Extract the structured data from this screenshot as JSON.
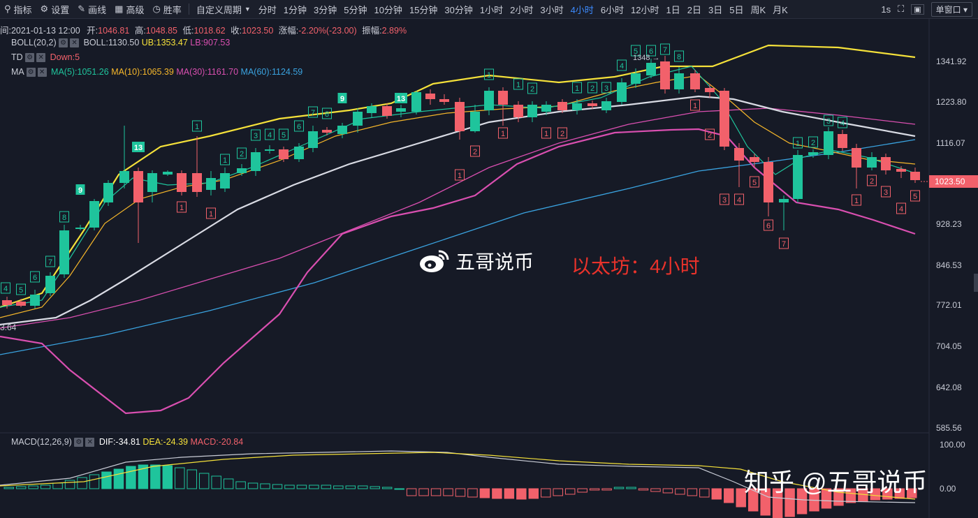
{
  "toolbar": {
    "indicators": "指标",
    "settings": "设置",
    "draw": "画线",
    "advanced": "高级",
    "winrate": "胜率",
    "custom_period": "自定义周期",
    "timeframes": [
      "分时",
      "1分钟",
      "3分钟",
      "5分钟",
      "10分钟",
      "15分钟",
      "30分钟",
      "1小时",
      "2小时",
      "3小时",
      "4小时",
      "6小时",
      "12小时",
      "1日",
      "2日",
      "3日",
      "5日",
      "周K",
      "月K"
    ],
    "active_timeframe": "4小时",
    "interval": "1s",
    "window_mode": "单窗口"
  },
  "ohlc": {
    "time": "间:2021-01-13 12:00",
    "open_label": "开:",
    "open": "1046.81",
    "high_label": "高:",
    "high": "1048.85",
    "low_label": "低:",
    "low": "1018.62",
    "close_label": "收:",
    "close": "1023.50",
    "change_label": "涨幅:",
    "change": "-2.20%(-23.00)",
    "amp_label": "振幅:",
    "amp": "2.89%"
  },
  "boll": {
    "name": "BOLL(20,2)",
    "mid": "BOLL:1130.50",
    "ub": "UB:1353.47",
    "lb": "LB:907.53"
  },
  "td": {
    "name": "TD",
    "down": "Down:5"
  },
  "ma": {
    "name": "MA",
    "ma5": "MA(5):1051.26",
    "ma10": "MA(10):1065.39",
    "ma30": "MA(30):1161.70",
    "ma60": "MA(60):1124.59"
  },
  "macd": {
    "name": "MACD(12,26,9)",
    "dif": "DIF:-34.81",
    "dea": "DEA:-24.39",
    "macd": "MACD:-20.84"
  },
  "price_axis": [
    "1341.92",
    "1223.80",
    "1116.07",
    "1023.50",
    "928.23",
    "846.53",
    "772.01",
    "704.05",
    "642.08",
    "585.56"
  ],
  "current_price": "1023.50",
  "macd_axis": [
    "100.00",
    "0.00"
  ],
  "left_price_label": "3.64",
  "high_marker": "1348",
  "watermark_center": "五哥说币",
  "watermark_title": "以太坊：4小时",
  "watermark_bottom": "知乎 @五哥说币",
  "colors": {
    "up": "#1fc49c",
    "down": "#f2616b",
    "bg": "#161a26",
    "boll_ub": "#f5e13a",
    "ma30": "#d94fb0",
    "ma60": "#3aa3e0",
    "accent": "#3d8bff"
  }
}
